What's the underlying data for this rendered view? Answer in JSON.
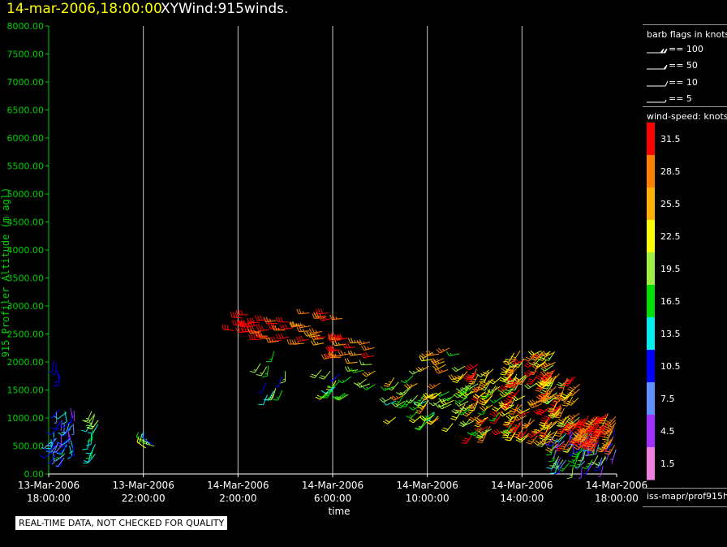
{
  "header": {
    "date": "14-mar-2006,18:00:00",
    "title": "XYWind:915winds."
  },
  "note": "REAL-TIME DATA, NOT CHECKED FOR QUALITY",
  "legend": {
    "barb_title": "barb flags in knots",
    "barbs": [
      "== 100",
      "== 50",
      "== 10",
      "== 5"
    ],
    "speed_title": "wind-speed: knots",
    "speed_bins": [
      {
        "label": "31.5",
        "color": "#ff0000"
      },
      {
        "label": "28.5",
        "color": "#ff8000"
      },
      {
        "label": "25.5",
        "color": "#ffb000"
      },
      {
        "label": "22.5",
        "color": "#ffff00"
      },
      {
        "label": "19.5",
        "color": "#a0f040"
      },
      {
        "label": "16.5",
        "color": "#00e000"
      },
      {
        "label": "13.5",
        "color": "#00f0f0"
      },
      {
        "label": "10.5",
        "color": "#0000ff"
      },
      {
        "label": "7.5",
        "color": "#6090ff"
      },
      {
        "label": "4.5",
        "color": "#a030ff"
      },
      {
        "label": "1.5",
        "color": "#f080e0"
      }
    ],
    "source": "iss-mapr/prof915h"
  },
  "chart_data": {
    "type": "scatter",
    "title": "XYWind:915winds.",
    "xlabel": "time",
    "ylabel": "915 Profiler Altitude (m agl)",
    "ylim": [
      0,
      8000
    ],
    "xlim_hours": [
      0,
      24
    ],
    "y_ticks": [
      "0.00",
      "500.00",
      "1000.00",
      "1500.00",
      "2000.00",
      "2500.00",
      "3000.00",
      "3500.00",
      "4000.00",
      "4500.00",
      "5000.00",
      "5500.00",
      "6000.00",
      "6500.00",
      "7000.00",
      "7500.00",
      "8000.00"
    ],
    "x_ticks": [
      {
        "hours": 0,
        "line1": "13-Mar-2006",
        "line2": "18:00:00"
      },
      {
        "hours": 4,
        "line1": "13-Mar-2006",
        "line2": "22:00:00"
      },
      {
        "hours": 8,
        "line1": "14-Mar-2006",
        "line2": "2:00:00"
      },
      {
        "hours": 12,
        "line1": "14-Mar-2006",
        "line2": "6:00:00"
      },
      {
        "hours": 16,
        "line1": "14-Mar-2006",
        "line2": "10:00:00"
      },
      {
        "hours": 20,
        "line1": "14-Mar-2006",
        "line2": "14:00:00"
      },
      {
        "hours": 24,
        "line1": "14-Mar-2006",
        "line2": "18:00:00"
      }
    ],
    "barb_clusters": [
      {
        "t0": 0.1,
        "t1": 1.1,
        "a0": 250,
        "a1": 1200,
        "count": 45,
        "speed": [
          3,
          16
        ],
        "dir": 200,
        "spread": 80
      },
      {
        "t0": 0.2,
        "t1": 0.5,
        "a0": 1700,
        "a1": 2050,
        "count": 4,
        "speed": [
          9,
          11
        ],
        "dir": 180,
        "spread": 20
      },
      {
        "t0": 1.6,
        "t1": 2.1,
        "a0": 350,
        "a1": 1150,
        "count": 14,
        "speed": [
          12,
          20
        ],
        "dir": 200,
        "spread": 40
      },
      {
        "t0": 3.9,
        "t1": 4.5,
        "a0": 450,
        "a1": 650,
        "count": 6,
        "speed": [
          9,
          22
        ],
        "dir": 300,
        "spread": 30
      },
      {
        "t0": 7.8,
        "t1": 9.0,
        "a0": 2500,
        "a1": 2900,
        "count": 10,
        "speed": [
          30,
          34
        ],
        "dir": 270,
        "spread": 15
      },
      {
        "t0": 8.5,
        "t1": 10.5,
        "a0": 2300,
        "a1": 2750,
        "count": 18,
        "speed": [
          27,
          34
        ],
        "dir": 265,
        "spread": 15
      },
      {
        "t0": 10.5,
        "t1": 12.5,
        "a0": 2300,
        "a1": 2900,
        "count": 20,
        "speed": [
          26,
          34
        ],
        "dir": 262,
        "spread": 15
      },
      {
        "t0": 12.0,
        "t1": 13.8,
        "a0": 2050,
        "a1": 2500,
        "count": 18,
        "speed": [
          26,
          34
        ],
        "dir": 262,
        "spread": 15
      },
      {
        "t0": 8.9,
        "t1": 10.1,
        "a0": 1300,
        "a1": 2200,
        "count": 12,
        "speed": [
          9,
          20
        ],
        "dir": 200,
        "spread": 40
      },
      {
        "t0": 11.3,
        "t1": 12.8,
        "a0": 1300,
        "a1": 1900,
        "count": 14,
        "speed": [
          9,
          22
        ],
        "dir": 220,
        "spread": 40
      },
      {
        "t0": 12.9,
        "t1": 14.0,
        "a0": 1600,
        "a1": 2000,
        "count": 8,
        "speed": [
          14,
          26
        ],
        "dir": 250,
        "spread": 40
      },
      {
        "t0": 14.5,
        "t1": 15.5,
        "a0": 1000,
        "a1": 1800,
        "count": 14,
        "speed": [
          14,
          28
        ],
        "dir": 230,
        "spread": 40
      },
      {
        "t0": 15.5,
        "t1": 17.5,
        "a0": 1600,
        "a1": 2250,
        "count": 14,
        "speed": [
          16,
          30
        ],
        "dir": 250,
        "spread": 30
      },
      {
        "t0": 15.5,
        "t1": 17.5,
        "a0": 900,
        "a1": 1500,
        "count": 30,
        "speed": [
          12,
          28
        ],
        "dir": 230,
        "spread": 45
      },
      {
        "t0": 17.5,
        "t1": 20.0,
        "a0": 700,
        "a1": 2000,
        "count": 95,
        "speed": [
          15,
          34
        ],
        "dir": 225,
        "spread": 45
      },
      {
        "t0": 19.5,
        "t1": 21.5,
        "a0": 600,
        "a1": 2200,
        "count": 90,
        "speed": [
          18,
          34
        ],
        "dir": 225,
        "spread": 45
      },
      {
        "t0": 21.0,
        "t1": 22.5,
        "a0": 500,
        "a1": 1800,
        "count": 70,
        "speed": [
          20,
          34
        ],
        "dir": 220,
        "spread": 40
      },
      {
        "t0": 21.3,
        "t1": 24.0,
        "a0": 100,
        "a1": 800,
        "count": 70,
        "speed": [
          3,
          20
        ],
        "dir": 205,
        "spread": 50
      },
      {
        "t0": 22.5,
        "t1": 24.0,
        "a0": 500,
        "a1": 1100,
        "count": 60,
        "speed": [
          26,
          34
        ],
        "dir": 220,
        "spread": 35
      }
    ]
  }
}
